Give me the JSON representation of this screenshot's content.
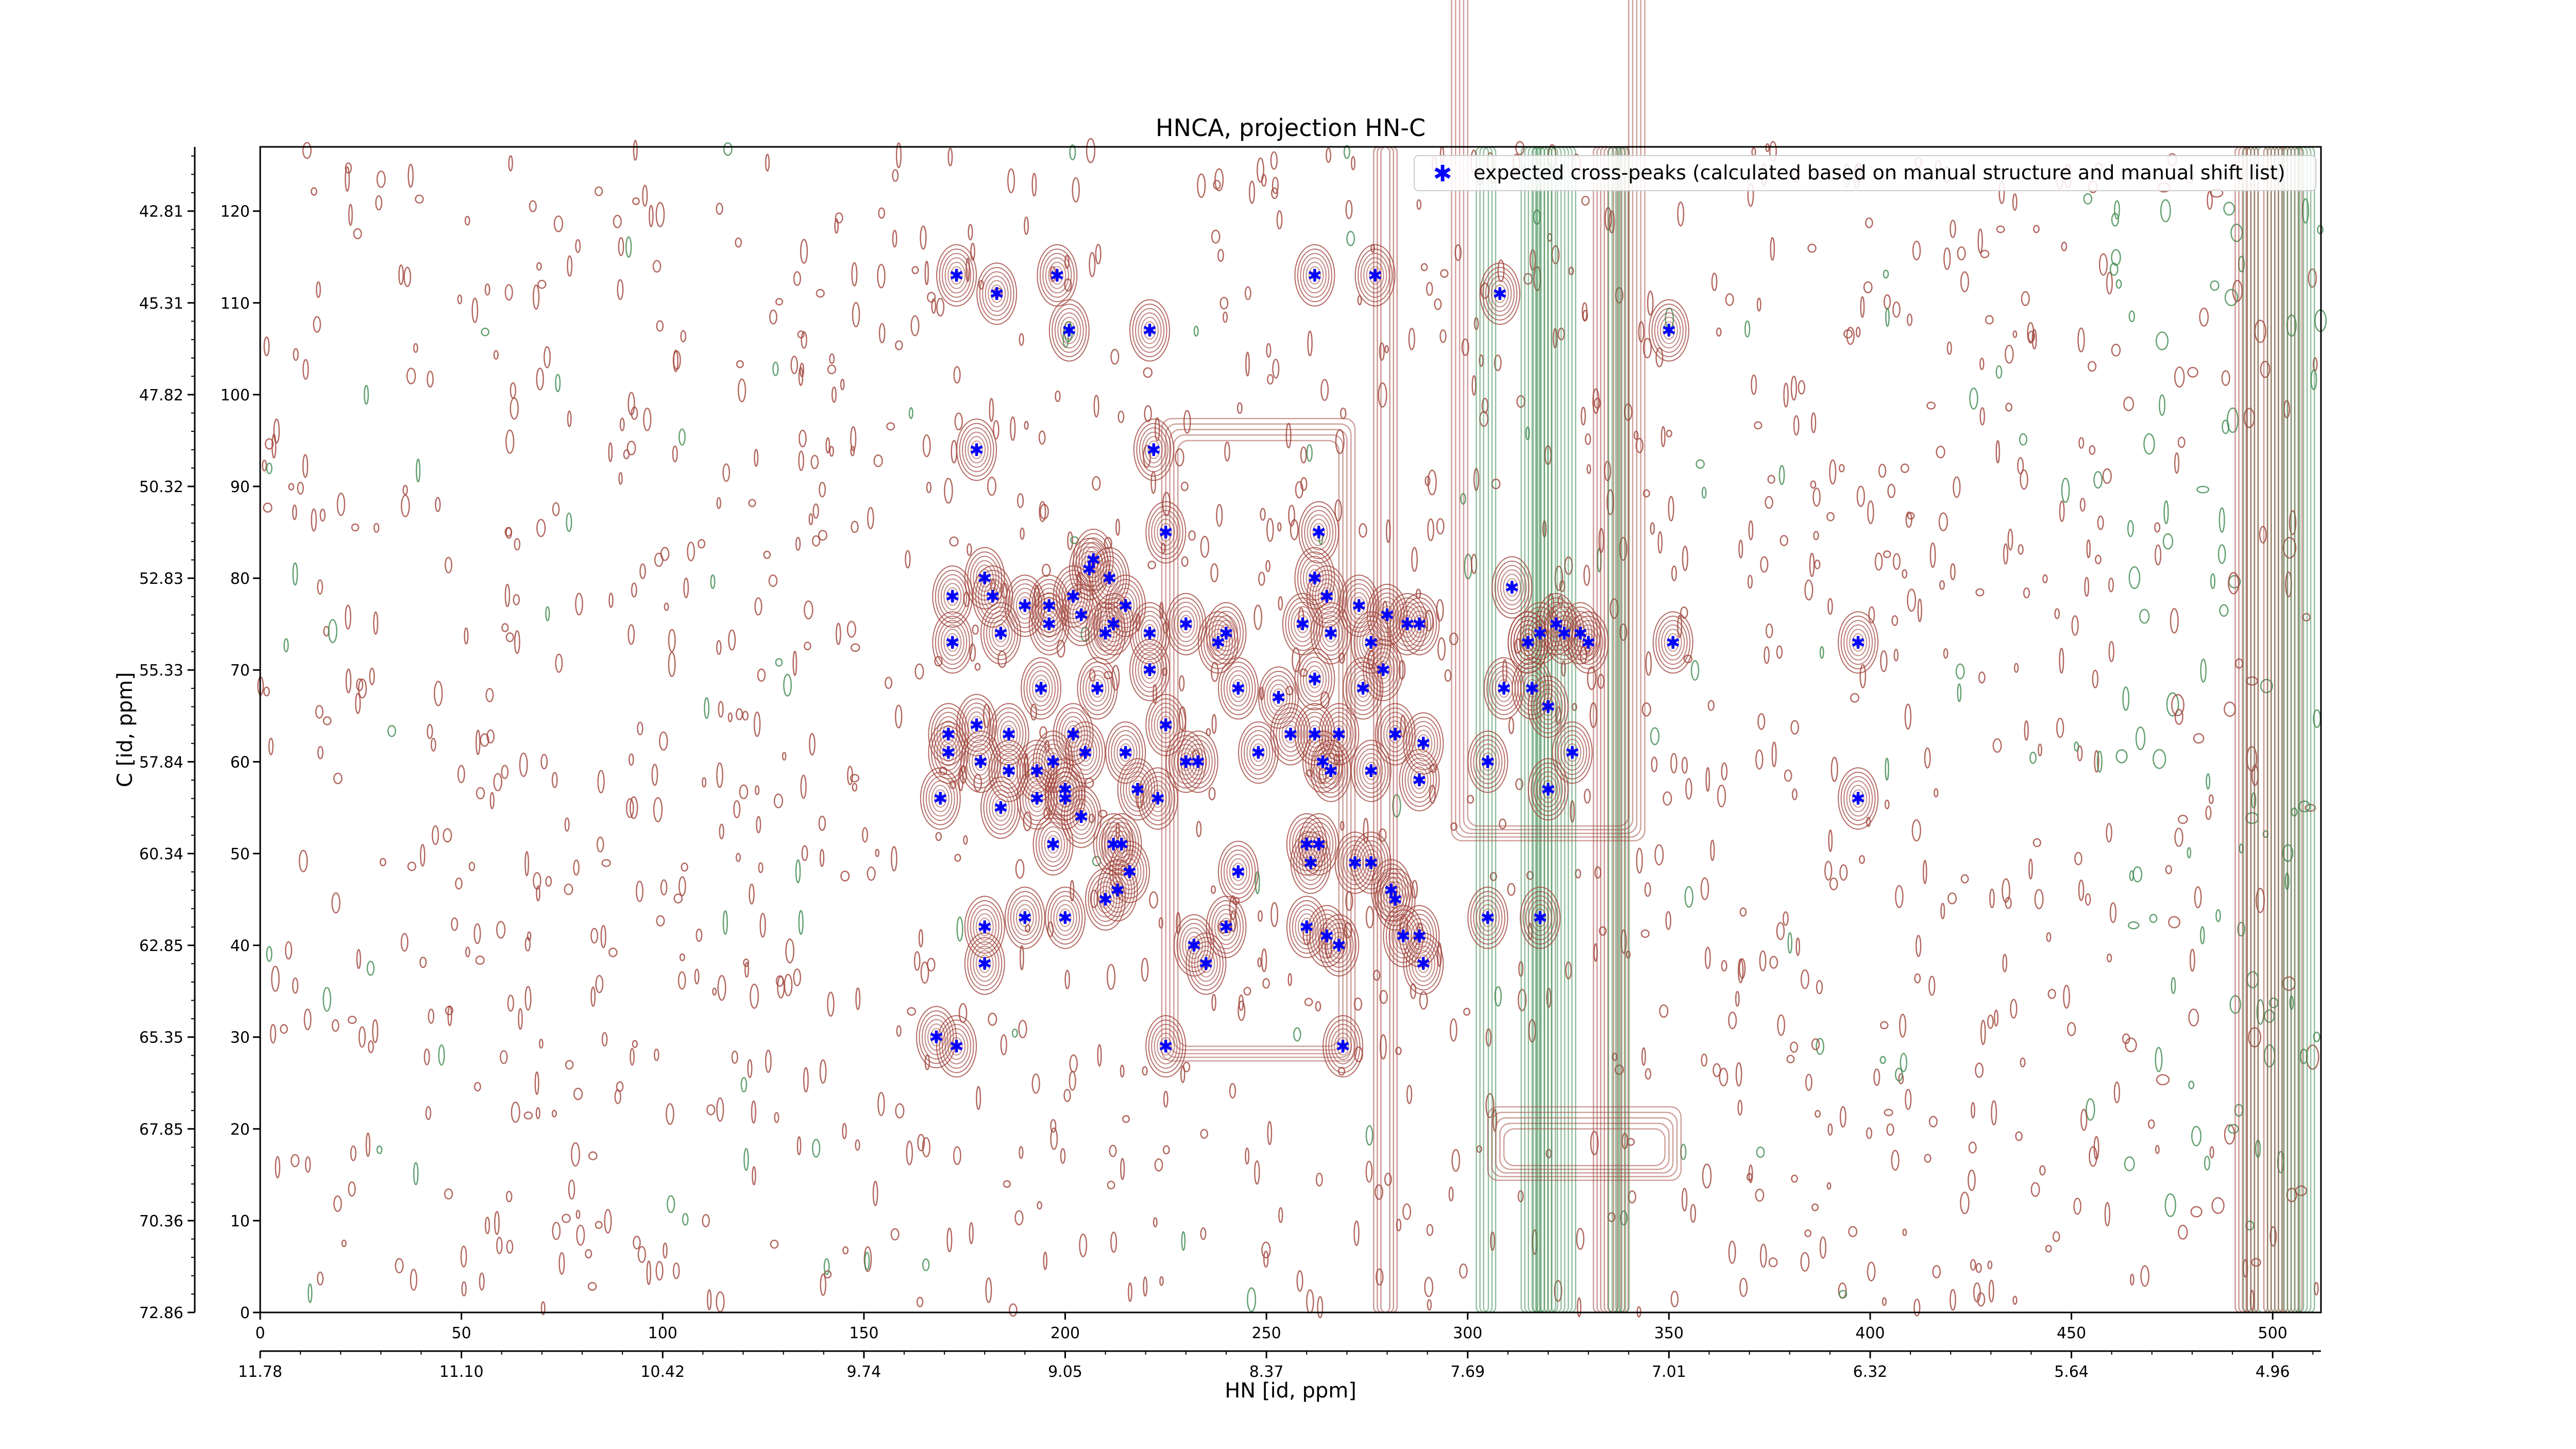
{
  "chart_data": {
    "type": "scatter",
    "title": "HNCA, projection HN-C",
    "xlabel": "HN [id, ppm]",
    "ylabel": "C [id, ppm]",
    "xlim": [
      0,
      512
    ],
    "ylim": [
      0,
      127
    ],
    "x_ticks": [
      0,
      50,
      100,
      150,
      200,
      250,
      300,
      350,
      400,
      450,
      500
    ],
    "y_ticks": [
      0,
      10,
      20,
      30,
      40,
      50,
      60,
      70,
      80,
      90,
      100,
      110,
      120
    ],
    "secondary_x_tick_labels": [
      "11.78",
      "11.10",
      "10.42",
      "9.74",
      "9.05",
      "8.37",
      "7.69",
      "7.01",
      "6.32",
      "5.64",
      "4.96"
    ],
    "secondary_y_tick_labels": [
      "72.86",
      "70.36",
      "67.85",
      "65.35",
      "62.85",
      "60.34",
      "57.84",
      "55.33",
      "52.83",
      "50.32",
      "47.82",
      "45.31",
      "42.81"
    ],
    "grid": false,
    "legend_position": "top-right",
    "colors": {
      "positive_contour": "#a0433a",
      "negative_contour": "#3d8a4e",
      "marker": "#0000ff"
    },
    "series": [
      {
        "name": "expected cross-peaks (calculated based on manual structure and manual shift list)",
        "marker": "*",
        "x": [
          173,
          183,
          198,
          201,
          221,
          262,
          277,
          308,
          350,
          178,
          222,
          180,
          225,
          207,
          206,
          172,
          182,
          190,
          196,
          202,
          204,
          211,
          215,
          263,
          262,
          265,
          273,
          280,
          288,
          315,
          311,
          322,
          324,
          328,
          330,
          172,
          184,
          196,
          210,
          212,
          221,
          230,
          238,
          240,
          259,
          266,
          276,
          285,
          315,
          318,
          194,
          208,
          221,
          243,
          253,
          262,
          274,
          279,
          309,
          316,
          320,
          351,
          397,
          178,
          186,
          202,
          205,
          215,
          225,
          233,
          248,
          256,
          262,
          268,
          282,
          289,
          171,
          171,
          179,
          186,
          193,
          197,
          200,
          218,
          230,
          264,
          266,
          276,
          288,
          305,
          326,
          320,
          169,
          184,
          193,
          200,
          204,
          212,
          216,
          223,
          263,
          272,
          281,
          288,
          397,
          197,
          214,
          243,
          260,
          261,
          276,
          282,
          180,
          190,
          200,
          213,
          232,
          240,
          260,
          268,
          284,
          305,
          318,
          180,
          210,
          235,
          265,
          289,
          168,
          173,
          225,
          269
        ],
        "y": [
          113,
          111,
          113,
          107,
          107,
          113,
          113,
          111,
          107,
          94,
          94,
          80,
          85,
          82,
          81,
          78,
          78,
          77,
          77,
          78,
          76,
          80,
          77,
          85,
          80,
          78,
          77,
          76,
          75,
          73,
          79,
          75,
          74,
          74,
          73,
          73,
          74,
          75,
          74,
          75,
          74,
          75,
          73,
          74,
          75,
          74,
          73,
          75,
          73,
          74,
          68,
          68,
          70,
          68,
          67,
          69,
          68,
          70,
          68,
          68,
          66,
          73,
          73,
          64,
          63,
          63,
          61,
          61,
          64,
          60,
          61,
          63,
          63,
          63,
          63,
          62,
          63,
          61,
          60,
          59,
          59,
          60,
          57,
          57,
          60,
          60,
          59,
          59,
          58,
          60,
          61,
          57,
          56,
          55,
          56,
          56,
          54,
          51,
          48,
          56,
          51,
          49,
          46,
          41,
          56,
          51,
          51,
          48,
          51,
          49,
          49,
          45,
          42,
          43,
          43,
          46,
          40,
          42,
          42,
          40,
          41,
          43,
          43,
          38,
          45,
          38,
          41,
          38,
          30,
          29,
          29,
          29
        ]
      }
    ]
  }
}
